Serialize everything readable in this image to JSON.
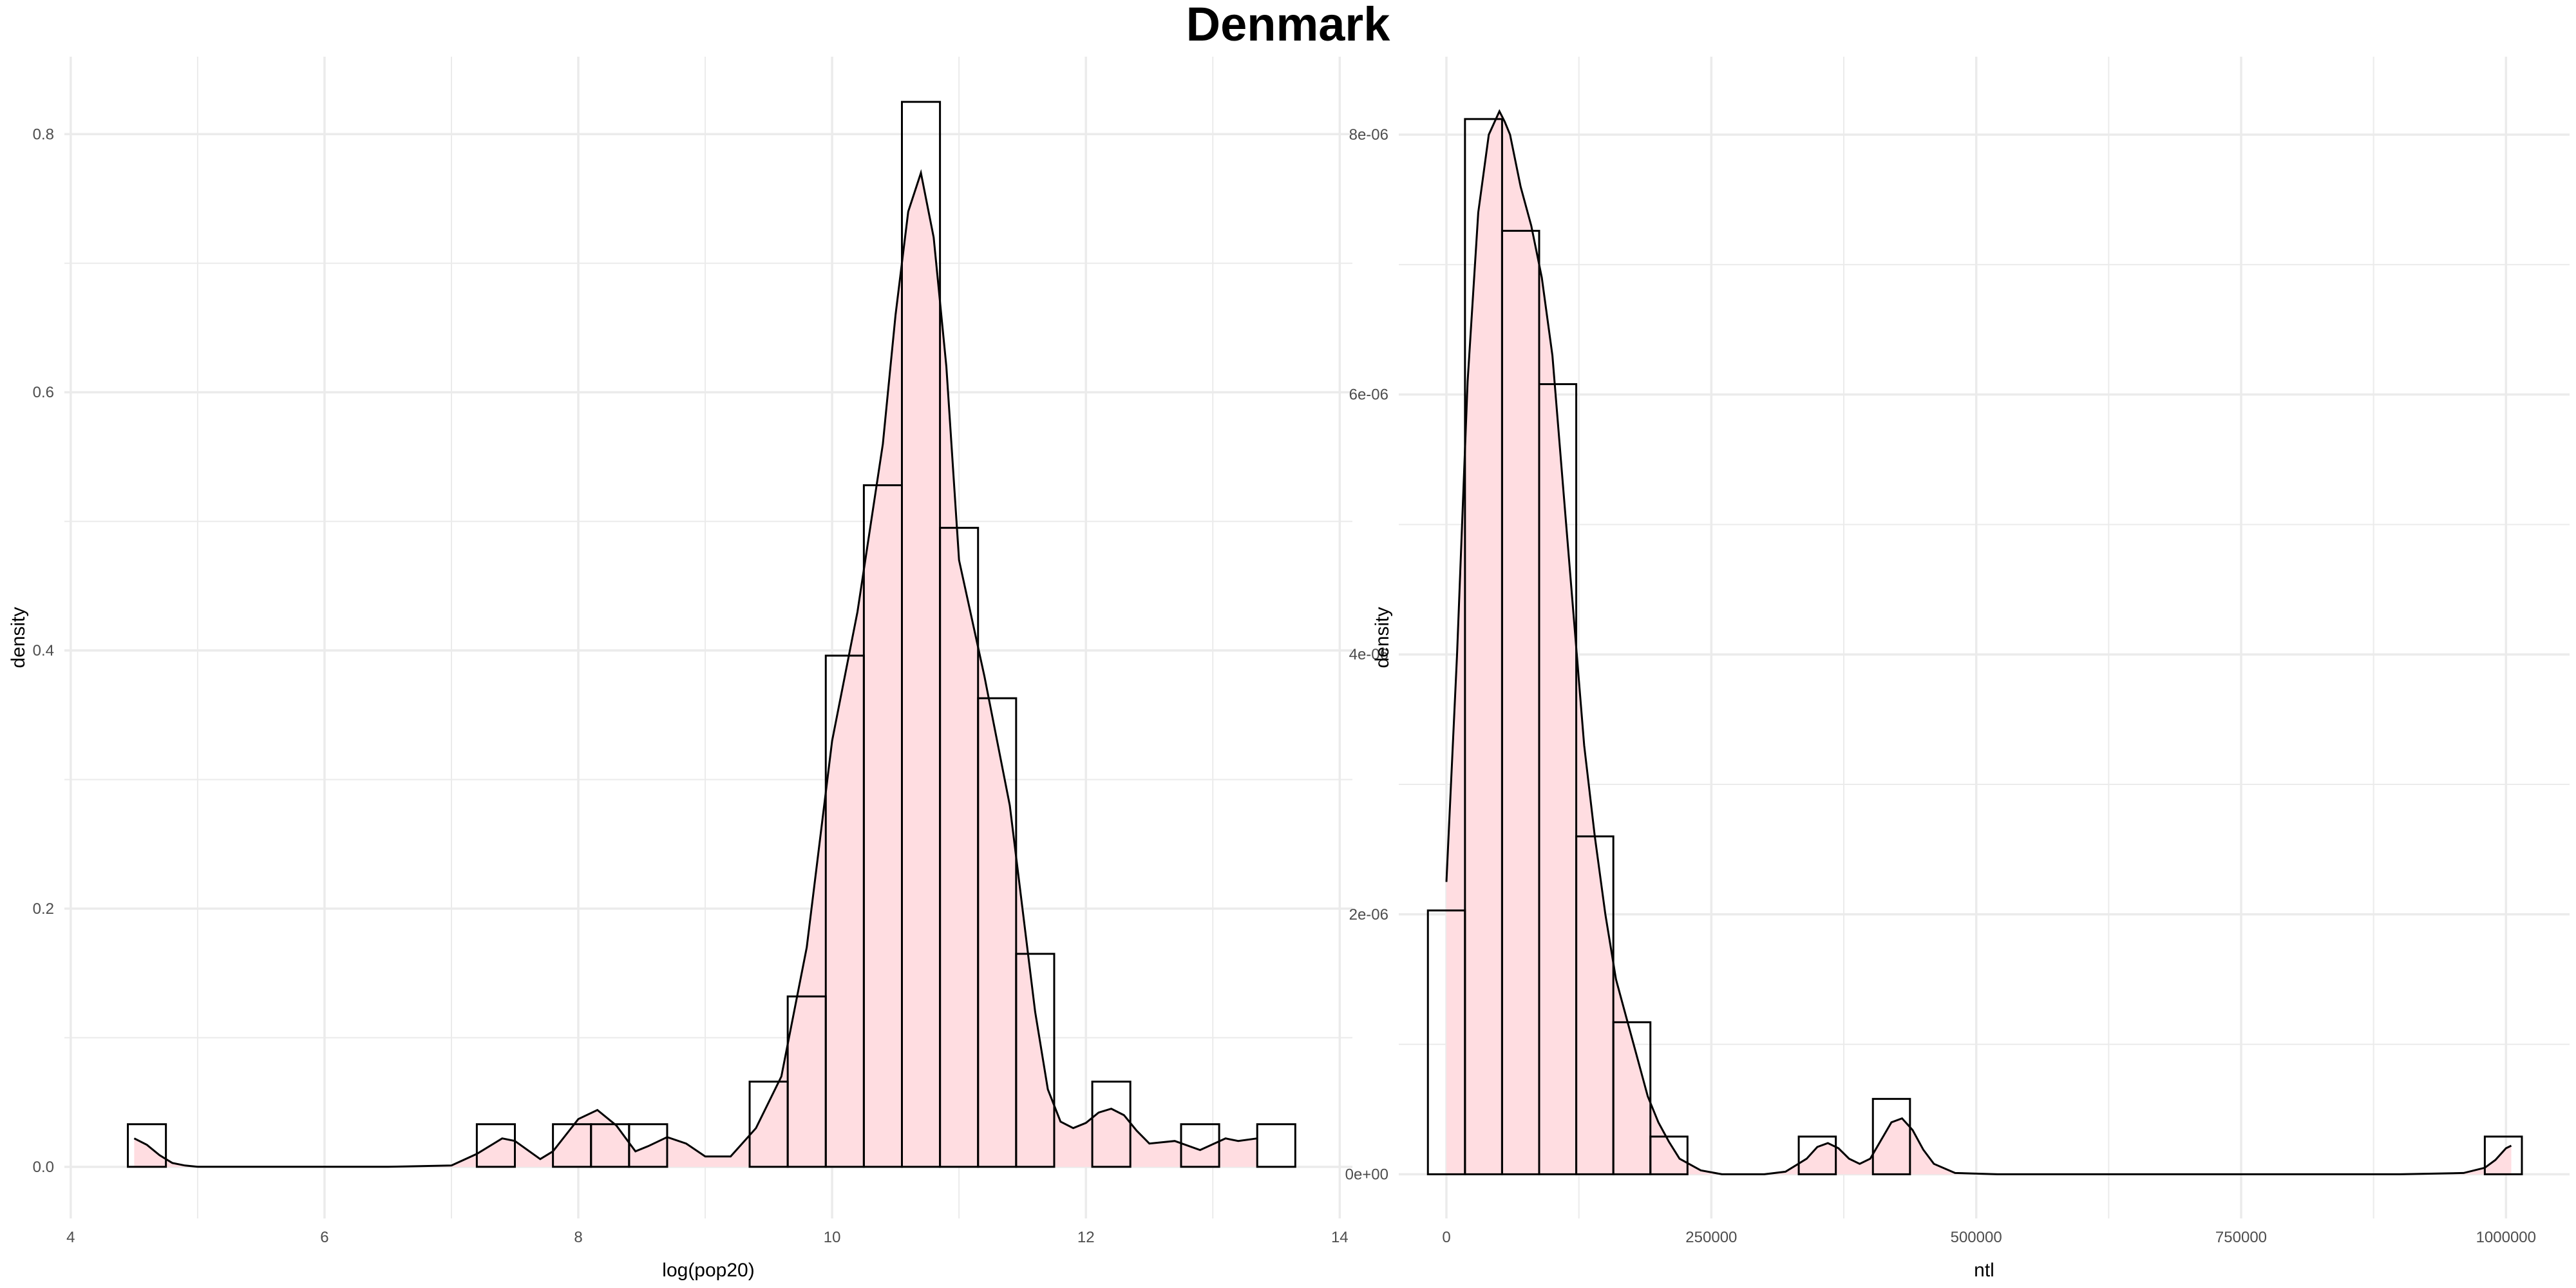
{
  "title": "Denmark",
  "colors": {
    "fill": "#ffdde1",
    "bar_stroke": "#000000",
    "grid": "#ebebeb",
    "background": "#ffffff"
  },
  "chart_data": [
    {
      "type": "bar",
      "xlabel": "log(pop20)",
      "ylabel": "density",
      "xlim": [
        3.95,
        14.1
      ],
      "ylim": [
        -0.04,
        0.86
      ],
      "xticks": [
        4,
        6,
        8,
        10,
        12,
        14
      ],
      "yticks": [
        0.0,
        0.2,
        0.4,
        0.6,
        0.8
      ],
      "xtick_labels": [
        "4",
        "6",
        "8",
        "10",
        "12",
        "14"
      ],
      "ytick_labels": [
        "0.0",
        "0.2",
        "0.4",
        "0.6",
        "0.8"
      ],
      "grid": true,
      "histogram": {
        "bin_width": 0.3,
        "bin_starts": [
          4.45,
          7.2,
          7.8,
          8.1,
          8.4,
          9.35,
          9.65,
          9.95,
          10.25,
          10.55,
          10.85,
          11.15,
          11.45,
          12.05,
          12.75,
          13.35
        ],
        "values": [
          0.033,
          0.033,
          0.033,
          0.033,
          0.033,
          0.066,
          0.132,
          0.396,
          0.528,
          0.825,
          0.495,
          0.363,
          0.165,
          0.066,
          0.033,
          0.033
        ]
      },
      "density": {
        "x": [
          4.5,
          4.6,
          4.7,
          4.8,
          4.9,
          5.0,
          5.5,
          6.0,
          6.5,
          7.0,
          7.2,
          7.4,
          7.5,
          7.7,
          7.8,
          8.0,
          8.15,
          8.3,
          8.45,
          8.55,
          8.7,
          8.85,
          9.0,
          9.2,
          9.4,
          9.6,
          9.8,
          10.0,
          10.2,
          10.4,
          10.5,
          10.6,
          10.7,
          10.8,
          10.9,
          11.0,
          11.2,
          11.4,
          11.5,
          11.6,
          11.7,
          11.8,
          11.9,
          12.0,
          12.1,
          12.2,
          12.3,
          12.4,
          12.5,
          12.7,
          12.9,
          13.1,
          13.2,
          13.35
        ],
        "y": [
          0.022,
          0.017,
          0.009,
          0.003,
          0.001,
          0.0,
          0.0,
          0.0,
          0.0,
          0.001,
          0.01,
          0.022,
          0.02,
          0.006,
          0.012,
          0.037,
          0.044,
          0.032,
          0.012,
          0.016,
          0.023,
          0.018,
          0.008,
          0.008,
          0.03,
          0.07,
          0.17,
          0.33,
          0.43,
          0.56,
          0.66,
          0.74,
          0.77,
          0.72,
          0.62,
          0.47,
          0.38,
          0.28,
          0.2,
          0.12,
          0.06,
          0.035,
          0.03,
          0.034,
          0.042,
          0.045,
          0.04,
          0.028,
          0.018,
          0.02,
          0.013,
          0.022,
          0.02,
          0.022
        ]
      }
    },
    {
      "type": "bar",
      "xlabel": "ntl",
      "ylabel": "density",
      "xlim": [
        -45000,
        1060000
      ],
      "ylim": [
        -3.4e-07,
        8.6e-06
      ],
      "xticks": [
        0,
        250000,
        500000,
        750000,
        1000000
      ],
      "yticks": [
        0,
        2e-06,
        4e-06,
        6e-06,
        8e-06
      ],
      "xtick_labels": [
        "0",
        "250000",
        "500000",
        "750000",
        "1000000"
      ],
      "ytick_labels": [
        "0e+00",
        "2e-06",
        "4e-06",
        "6e-06",
        "8e-06"
      ],
      "grid": true,
      "histogram": {
        "bin_width": 35000,
        "bin_starts": [
          -17500,
          17500,
          52500,
          87500,
          122500,
          157500,
          192500,
          332500,
          402500,
          980000
        ],
        "values": [
          2.03e-06,
          8.12e-06,
          7.26e-06,
          6.08e-06,
          2.6e-06,
          1.17e-06,
          2.9e-07,
          2.9e-07,
          5.8e-07,
          2.9e-07
        ]
      },
      "density": {
        "x": [
          0,
          10000,
          20000,
          30000,
          40000,
          50000,
          55000,
          60000,
          70000,
          80000,
          90000,
          100000,
          110000,
          120000,
          130000,
          140000,
          150000,
          160000,
          170000,
          180000,
          190000,
          200000,
          210000,
          220000,
          240000,
          260000,
          300000,
          320000,
          340000,
          350000,
          360000,
          370000,
          380000,
          390000,
          400000,
          410000,
          420000,
          430000,
          440000,
          450000,
          460000,
          480000,
          520000,
          600000,
          700000,
          800000,
          900000,
          960000,
          980000,
          990000,
          1000000,
          1005000
        ],
        "y": [
          2.25e-06,
          4e-06,
          6.1e-06,
          7.4e-06,
          8e-06,
          8.18e-06,
          8.1e-06,
          8e-06,
          7.6e-06,
          7.3e-06,
          6.9e-06,
          6.3e-06,
          5.3e-06,
          4.3e-06,
          3.3e-06,
          2.6e-06,
          2e-06,
          1.5e-06,
          1.2e-06,
          9e-07,
          6e-07,
          4e-07,
          2.5e-07,
          1.2e-07,
          3e-08,
          0.0,
          0.0,
          2e-08,
          1.2e-07,
          2.1e-07,
          2.4e-07,
          2e-07,
          1.2e-07,
          8e-08,
          1.2e-07,
          2.6e-07,
          4e-07,
          4.3e-07,
          3.4e-07,
          1.9e-07,
          8e-08,
          1e-08,
          0.0,
          0.0,
          0.0,
          0.0,
          0.0,
          1e-08,
          5e-08,
          1.1e-07,
          2e-07,
          2.2e-07
        ]
      }
    }
  ]
}
